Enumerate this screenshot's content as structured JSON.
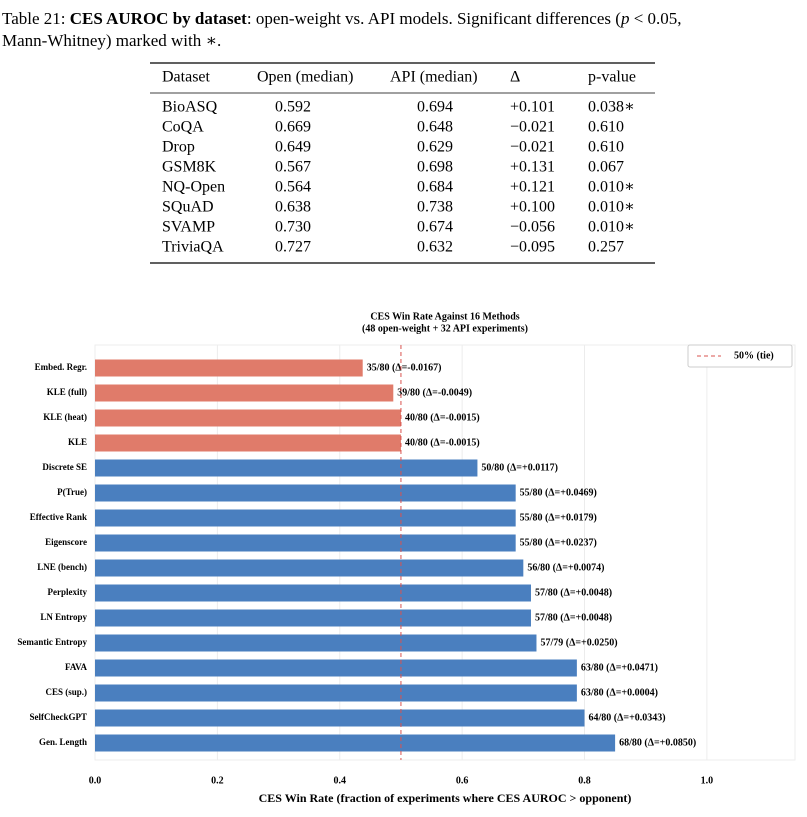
{
  "caption": {
    "label": "Table 21:",
    "title": "CES AUROC by dataset",
    "text1": ": open-weight vs. API models. Significant differences (",
    "p": "p",
    "text2": " < 0.05,",
    "text3": "Mann-Whitney) marked with ∗."
  },
  "table": {
    "header": [
      "Dataset",
      "Open (median)",
      "API (median)",
      "Δ",
      "p-value"
    ],
    "rows": [
      [
        "BioASQ",
        "0.592",
        "0.694",
        "+0.101",
        "0.038∗"
      ],
      [
        "CoQA",
        "0.669",
        "0.648",
        "−0.021",
        "0.610"
      ],
      [
        "Drop",
        "0.649",
        "0.629",
        "−0.021",
        "0.610"
      ],
      [
        "GSM8K",
        "0.567",
        "0.698",
        "+0.131",
        "0.067"
      ],
      [
        "NQ-Open",
        "0.564",
        "0.684",
        "+0.121",
        "0.010∗"
      ],
      [
        "SQuAD",
        "0.638",
        "0.738",
        "+0.100",
        "0.010∗"
      ],
      [
        "SVAMP",
        "0.730",
        "0.674",
        "−0.056",
        "0.010∗"
      ],
      [
        "TriviaQA",
        "0.727",
        "0.632",
        "−0.095",
        "0.257"
      ]
    ]
  },
  "chart_data": {
    "type": "hbar",
    "title": "CES Win Rate Against 16 Methods",
    "subtitle": "(48 open-weight + 32 API experiments)",
    "xlabel": "CES Win Rate (fraction of experiments where CES AUROC > opponent)",
    "categories": [
      "Embed. Regr.",
      "KLE (full)",
      "KLE (heat)",
      "KLE",
      "Discrete SE",
      "P(True)",
      "Effective Rank",
      "Eigenscore",
      "LNE (bench)",
      "Perplexity",
      "LN Entropy",
      "Semantic Entropy",
      "FAVA",
      "CES (sup.)",
      "SelfCheckGPT",
      "Gen. Length"
    ],
    "values": [
      0.4375,
      0.4875,
      0.5,
      0.5,
      0.625,
      0.6875,
      0.6875,
      0.6875,
      0.7,
      0.7125,
      0.7125,
      0.7215,
      0.7875,
      0.7875,
      0.8,
      0.85
    ],
    "value_labels": [
      "35/80  (Δ=-0.0167)",
      "39/80  (Δ=-0.0049)",
      "40/80  (Δ=-0.0015)",
      "40/80  (Δ=-0.0015)",
      "50/80  (Δ=+0.0117)",
      "55/80  (Δ=+0.0469)",
      "55/80  (Δ=+0.0179)",
      "55/80  (Δ=+0.0237)",
      "56/80  (Δ=+0.0074)",
      "57/80  (Δ=+0.0048)",
      "57/80  (Δ=+0.0048)",
      "57/79  (Δ=+0.0250)",
      "63/80  (Δ=+0.0471)",
      "63/80  (Δ=+0.0004)",
      "64/80  (Δ=+0.0343)",
      "68/80  (Δ=+0.0850)"
    ],
    "colors": [
      "#e07b6a",
      "#e07b6a",
      "#e07b6a",
      "#e07b6a",
      "#4a7fbf",
      "#4a7fbf",
      "#4a7fbf",
      "#4a7fbf",
      "#4a7fbf",
      "#4a7fbf",
      "#4a7fbf",
      "#4a7fbf",
      "#4a7fbf",
      "#4a7fbf",
      "#4a7fbf",
      "#4a7fbf"
    ],
    "xlim": [
      0,
      1.144
    ],
    "xticks": [
      {
        "value": 0,
        "label": "0.0"
      },
      0.2,
      0.4,
      0.6,
      0.8,
      {
        "value": 1,
        "label": "1.0"
      }
    ],
    "grid": true,
    "reference_line": {
      "value": 0.5,
      "label": "50% (tie)",
      "color": "#d9534f"
    },
    "legend": "upper right"
  }
}
